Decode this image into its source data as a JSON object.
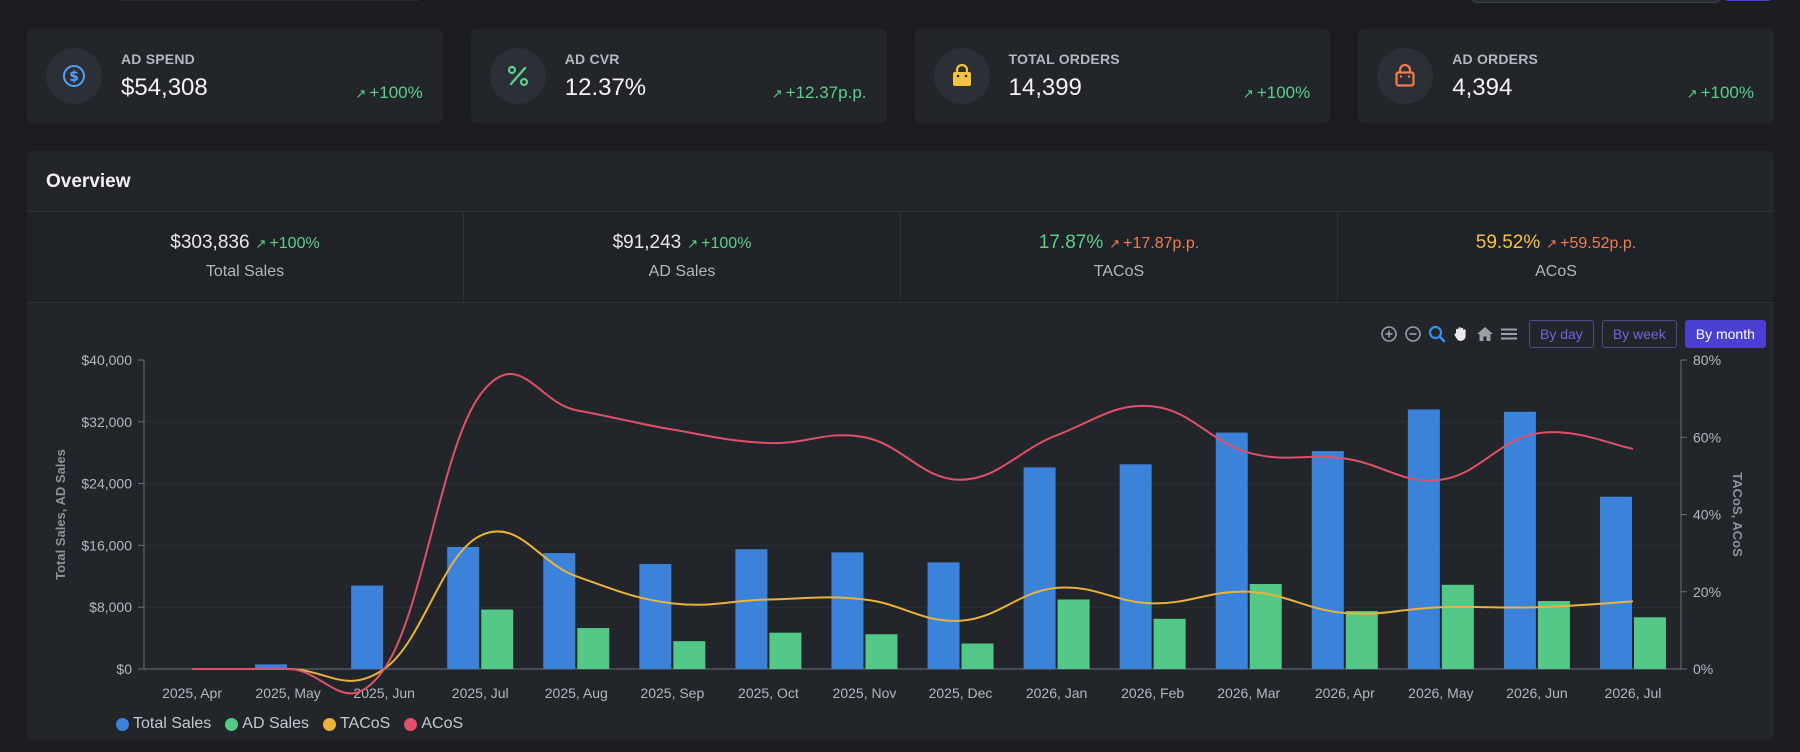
{
  "kpis": [
    {
      "label": "AD SPEND",
      "value": "$54,308",
      "change": "+100%",
      "icon": "dollar-icon",
      "color": "#4fa3f7"
    },
    {
      "label": "AD CVR",
      "value": "12.37%",
      "change": "+12.37p.p.",
      "icon": "percent-icon",
      "color": "#5bd08b"
    },
    {
      "label": "TOTAL ORDERS",
      "value": "14,399",
      "change": "+100%",
      "icon": "shopping-bag-icon",
      "color": "#f5c342"
    },
    {
      "label": "AD ORDERS",
      "value": "4,394",
      "change": "+100%",
      "icon": "shopping-bag-outline-icon",
      "color": "#ef7d52"
    }
  ],
  "overview": {
    "title": "Overview",
    "summary": [
      {
        "value": "$303,836",
        "change": "+100%",
        "label": "Total Sales"
      },
      {
        "value": "$91,243",
        "change": "+100%",
        "label": "AD Sales"
      },
      {
        "value": "17.87%",
        "change": "+17.87p.p.",
        "label": "TACoS"
      },
      {
        "value": "59.52%",
        "change": "+59.52p.p.",
        "label": "ACoS"
      }
    ],
    "periods": [
      "By day",
      "By week",
      "By month"
    ],
    "active_period": "By month"
  },
  "chart_data": {
    "type": "bar",
    "categories": [
      "2025, Apr",
      "2025, May",
      "2025, Jun",
      "2025, Jul",
      "2025, Aug",
      "2025, Sep",
      "2025, Oct",
      "2025, Nov",
      "2025, Dec",
      "2026, Jan",
      "2026, Feb",
      "2026, Mar",
      "2026, Apr",
      "2026, May",
      "2026, Jun",
      "2026, Jul"
    ],
    "ylabel": "Total Sales, AD Sales",
    "y2label": "TACoS, ACoS",
    "ylim": [
      0,
      40000
    ],
    "y2lim": [
      0,
      80
    ],
    "yticks": [
      "$0",
      "$8,000",
      "$16,000",
      "$24,000",
      "$32,000",
      "$40,000"
    ],
    "y2ticks": [
      "0%",
      "20%",
      "40%",
      "60%",
      "80%"
    ],
    "series": [
      {
        "name": "Total Sales",
        "type": "bar",
        "color": "#3b82db",
        "values": [
          0,
          600,
          10800,
          15800,
          15000,
          13600,
          15500,
          15100,
          13800,
          26100,
          26500,
          30600,
          28200,
          33600,
          33300,
          22300
        ]
      },
      {
        "name": "AD Sales",
        "type": "bar",
        "color": "#53c887",
        "values": [
          0,
          0,
          0,
          7700,
          5300,
          3600,
          4700,
          4500,
          3300,
          9000,
          6500,
          11000,
          7500,
          10900,
          8800,
          6700
        ]
      },
      {
        "name": "TACoS",
        "type": "line",
        "color": "#e9b33c",
        "values": [
          0,
          0,
          0,
          34.5,
          24,
          17,
          18,
          18,
          12.5,
          21,
          17,
          20,
          14.5,
          16,
          16,
          17.5
        ]
      },
      {
        "name": "ACoS",
        "type": "line",
        "color": "#e0506a",
        "values": [
          0,
          0,
          0,
          71,
          67,
          62,
          58.5,
          60,
          49,
          60.5,
          68,
          56,
          54.5,
          49,
          61,
          57
        ]
      }
    ],
    "legend_position": "bottom-left"
  }
}
